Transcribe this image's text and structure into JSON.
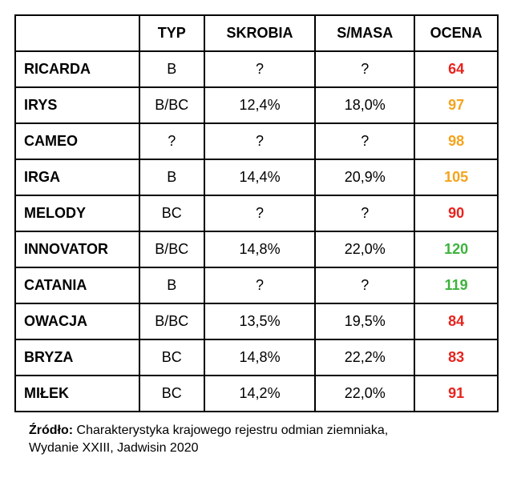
{
  "colors": {
    "red": "#e8231d",
    "orange": "#f5a31c",
    "green": "#3db33c"
  },
  "chart_data": {
    "type": "table",
    "columns": [
      "",
      "TYP",
      "SKROBIA",
      "S/MASA",
      "OCENA"
    ],
    "rows": [
      [
        "RICARDA",
        "B",
        "?",
        "?",
        "64"
      ],
      [
        "IRYS",
        "B/BC",
        "12,4%",
        "18,0%",
        "97"
      ],
      [
        "CAMEO",
        "?",
        "?",
        "?",
        "98"
      ],
      [
        "IRGA",
        "B",
        "14,4%",
        "20,9%",
        "105"
      ],
      [
        "MELODY",
        "BC",
        "?",
        "?",
        "90"
      ],
      [
        "INNOVATOR",
        "B/BC",
        "14,8%",
        "22,0%",
        "120"
      ],
      [
        "CATANIA",
        "B",
        "?",
        "?",
        "119"
      ],
      [
        "OWACJA",
        "B/BC",
        "13,5%",
        "19,5%",
        "84"
      ],
      [
        "BRYZA",
        "BC",
        "14,8%",
        "22,2%",
        "83"
      ],
      [
        "MIŁEK",
        "BC",
        "14,2%",
        "22,0%",
        "91"
      ]
    ],
    "score_colors": [
      "red",
      "orange",
      "orange",
      "orange",
      "red",
      "green",
      "green",
      "red",
      "red",
      "red"
    ]
  },
  "footer": {
    "label": "Źródło:",
    "text": "Charakterystyka krajowego rejestru odmian ziemniaka, Wydanie XXIII, Jadwisin 2020"
  }
}
